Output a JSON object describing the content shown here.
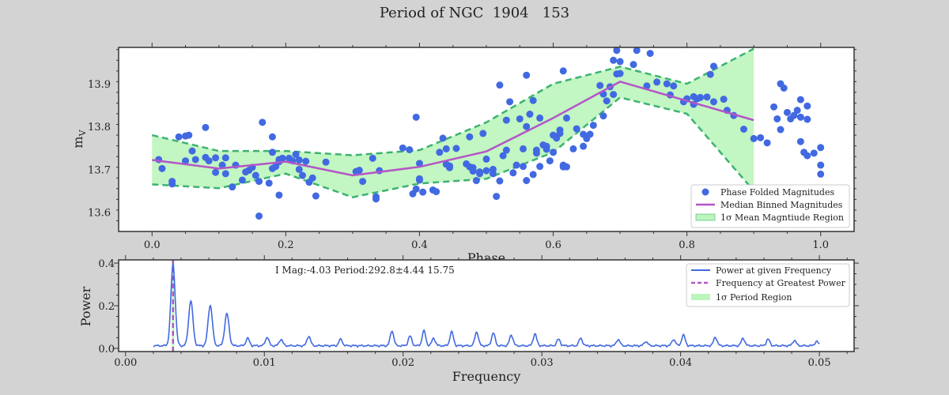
{
  "figure": {
    "title": "Period of NGC  1904   153"
  },
  "colors": {
    "points": "#4169e1",
    "median": "#b455c8",
    "band_fill": "#90ee90",
    "band_edge": "#3cb371",
    "power": "#4169e1",
    "peak": "#b455c8",
    "background": "#d3d3d3"
  },
  "chart_data": [
    {
      "type": "scatter",
      "xlabel": "Phase",
      "ylabel": "m_V",
      "xlim": [
        -0.05,
        1.05
      ],
      "ylim": [
        13.555,
        13.985
      ],
      "xticks": [
        "0.0",
        "0.2",
        "0.4",
        "0.6",
        "0.8",
        "1.0"
      ],
      "yticks": [
        "13.6",
        "13.7",
        "13.8",
        "13.9"
      ],
      "legend": {
        "position": "lower-right",
        "entries": [
          "Phase Folded Magnitudes",
          "Median Binned Magnitudes",
          "1σ Mean Magntiude Region"
        ]
      },
      "points": [
        [
          0.01,
          13.723
        ],
        [
          0.015,
          13.702
        ],
        [
          0.03,
          13.672
        ],
        [
          0.03,
          13.666
        ],
        [
          0.04,
          13.776
        ],
        [
          0.05,
          13.778
        ],
        [
          0.055,
          13.78
        ],
        [
          0.05,
          13.72
        ],
        [
          0.06,
          13.743
        ],
        [
          0.065,
          13.723
        ],
        [
          0.08,
          13.798
        ],
        [
          0.08,
          13.728
        ],
        [
          0.085,
          13.72
        ],
        [
          0.095,
          13.727
        ],
        [
          0.095,
          13.693
        ],
        [
          0.105,
          13.71
        ],
        [
          0.11,
          13.727
        ],
        [
          0.11,
          13.69
        ],
        [
          0.12,
          13.659
        ],
        [
          0.125,
          13.71
        ],
        [
          0.135,
          13.675
        ],
        [
          0.14,
          13.694
        ],
        [
          0.145,
          13.698
        ],
        [
          0.15,
          13.705
        ],
        [
          0.155,
          13.686
        ],
        [
          0.16,
          13.591
        ],
        [
          0.16,
          13.672
        ],
        [
          0.165,
          13.81
        ],
        [
          0.175,
          13.668
        ],
        [
          0.18,
          13.776
        ],
        [
          0.18,
          13.74
        ],
        [
          0.18,
          13.702
        ],
        [
          0.185,
          13.707
        ],
        [
          0.19,
          13.718
        ],
        [
          0.19,
          13.723
        ],
        [
          0.19,
          13.64
        ],
        [
          0.195,
          13.726
        ],
        [
          0.205,
          13.726
        ],
        [
          0.21,
          13.72
        ],
        [
          0.215,
          13.735
        ],
        [
          0.22,
          13.722
        ],
        [
          0.22,
          13.7
        ],
        [
          0.225,
          13.686
        ],
        [
          0.23,
          13.719
        ],
        [
          0.235,
          13.67
        ],
        [
          0.24,
          13.68
        ],
        [
          0.245,
          13.638
        ],
        [
          0.26,
          13.717
        ],
        [
          0.305,
          13.695
        ],
        [
          0.31,
          13.698
        ],
        [
          0.315,
          13.672
        ],
        [
          0.33,
          13.726
        ],
        [
          0.335,
          13.636
        ],
        [
          0.335,
          13.631
        ],
        [
          0.34,
          13.697
        ],
        [
          0.375,
          13.75
        ],
        [
          0.385,
          13.746
        ],
        [
          0.39,
          13.643
        ],
        [
          0.395,
          13.654
        ],
        [
          0.4,
          13.675
        ],
        [
          0.4,
          13.678
        ],
        [
          0.395,
          13.822
        ],
        [
          0.4,
          13.714
        ],
        [
          0.405,
          13.647
        ],
        [
          0.42,
          13.652
        ],
        [
          0.425,
          13.648
        ],
        [
          0.43,
          13.74
        ],
        [
          0.435,
          13.773
        ],
        [
          0.44,
          13.712
        ],
        [
          0.44,
          13.748
        ],
        [
          0.445,
          13.704
        ],
        [
          0.445,
          13.708
        ],
        [
          0.455,
          13.749
        ],
        [
          0.47,
          13.713
        ],
        [
          0.475,
          13.776
        ],
        [
          0.475,
          13.706
        ],
        [
          0.48,
          13.696
        ],
        [
          0.48,
          13.704
        ],
        [
          0.485,
          13.674
        ],
        [
          0.49,
          13.694
        ],
        [
          0.49,
          13.69
        ],
        [
          0.495,
          13.784
        ],
        [
          0.5,
          13.697
        ],
        [
          0.5,
          13.724
        ],
        [
          0.51,
          13.7
        ],
        [
          0.51,
          13.69
        ],
        [
          0.515,
          13.637
        ],
        [
          0.52,
          13.897
        ],
        [
          0.52,
          13.673
        ],
        [
          0.525,
          13.732
        ],
        [
          0.53,
          13.745
        ],
        [
          0.53,
          13.815
        ],
        [
          0.535,
          13.858
        ],
        [
          0.54,
          13.692
        ],
        [
          0.545,
          13.71
        ],
        [
          0.55,
          13.818
        ],
        [
          0.555,
          13.707
        ],
        [
          0.555,
          13.748
        ],
        [
          0.56,
          13.674
        ],
        [
          0.56,
          13.92
        ],
        [
          0.56,
          13.8
        ],
        [
          0.565,
          13.829
        ],
        [
          0.57,
          13.688
        ],
        [
          0.57,
          13.861
        ],
        [
          0.575,
          13.738
        ],
        [
          0.575,
          13.745
        ],
        [
          0.58,
          13.707
        ],
        [
          0.58,
          13.82
        ],
        [
          0.585,
          13.757
        ],
        [
          0.59,
          13.747
        ],
        [
          0.59,
          13.754
        ],
        [
          0.595,
          13.72
        ],
        [
          0.6,
          13.78
        ],
        [
          0.6,
          13.74
        ],
        [
          0.605,
          13.773
        ],
        [
          0.61,
          13.784
        ],
        [
          0.61,
          13.792
        ],
        [
          0.615,
          13.71
        ],
        [
          0.615,
          13.706
        ],
        [
          0.615,
          13.93
        ],
        [
          0.62,
          13.706
        ],
        [
          0.62,
          13.82
        ],
        [
          0.63,
          13.748
        ],
        [
          0.635,
          13.795
        ],
        [
          0.645,
          13.754
        ],
        [
          0.645,
          13.782
        ],
        [
          0.65,
          13.772
        ],
        [
          0.655,
          13.782
        ],
        [
          0.66,
          13.803
        ],
        [
          0.67,
          13.896
        ],
        [
          0.675,
          13.876
        ],
        [
          0.675,
          13.825
        ],
        [
          0.68,
          13.86
        ],
        [
          0.685,
          13.893
        ],
        [
          0.69,
          13.875
        ],
        [
          0.69,
          13.955
        ],
        [
          0.695,
          13.923
        ],
        [
          0.695,
          13.978
        ],
        [
          0.7,
          13.952
        ],
        [
          0.7,
          13.924
        ],
        [
          0.72,
          13.945
        ],
        [
          0.725,
          13.978
        ],
        [
          0.74,
          13.895
        ],
        [
          0.745,
          13.971
        ],
        [
          0.755,
          13.904
        ],
        [
          0.77,
          13.9
        ],
        [
          0.775,
          13.874
        ],
        [
          0.78,
          13.895
        ],
        [
          0.795,
          13.858
        ],
        [
          0.8,
          13.865
        ],
        [
          0.81,
          13.852
        ],
        [
          0.81,
          13.87
        ],
        [
          0.815,
          13.865
        ],
        [
          0.82,
          13.868
        ],
        [
          0.83,
          13.869
        ],
        [
          0.835,
          13.922
        ],
        [
          0.84,
          13.941
        ],
        [
          0.84,
          13.858
        ],
        [
          0.855,
          13.864
        ],
        [
          0.86,
          13.838
        ],
        [
          0.87,
          13.826
        ],
        [
          0.885,
          13.794
        ],
        [
          0.9,
          13.772
        ],
        [
          0.91,
          13.774
        ],
        [
          0.92,
          13.762
        ],
        [
          0.93,
          13.846
        ],
        [
          0.935,
          13.818
        ],
        [
          0.94,
          13.793
        ],
        [
          0.94,
          13.9
        ],
        [
          0.945,
          13.89
        ],
        [
          0.95,
          13.833
        ],
        [
          0.955,
          13.818
        ],
        [
          0.96,
          13.826
        ],
        [
          0.965,
          13.838
        ],
        [
          0.97,
          13.863
        ],
        [
          0.97,
          13.822
        ],
        [
          0.97,
          13.765
        ],
        [
          0.975,
          13.74
        ],
        [
          0.98,
          13.848
        ],
        [
          0.98,
          13.732
        ],
        [
          0.98,
          13.817
        ],
        [
          0.99,
          13.738
        ],
        [
          1.0,
          13.689
        ],
        [
          1.0,
          13.71
        ],
        [
          1.0,
          13.751
        ]
      ],
      "median": {
        "x": [
          0.0,
          0.1,
          0.2,
          0.3,
          0.4,
          0.5,
          0.6,
          0.7,
          0.8,
          0.9
        ],
        "y": [
          13.722,
          13.702,
          13.718,
          13.686,
          13.706,
          13.742,
          13.82,
          13.905,
          13.86,
          13.815
        ]
      },
      "band": {
        "x": [
          0.0,
          0.1,
          0.2,
          0.3,
          0.4,
          0.5,
          0.6,
          0.7,
          0.8,
          0.9
        ],
        "upper": [
          13.78,
          13.743,
          13.743,
          13.733,
          13.745,
          13.81,
          13.9,
          13.94,
          13.9,
          13.982
        ],
        "lower": [
          13.665,
          13.656,
          13.69,
          13.635,
          13.667,
          13.678,
          13.74,
          13.868,
          13.83,
          13.65
        ]
      }
    },
    {
      "type": "line",
      "xlabel": "Frequency",
      "ylabel": "Power",
      "xlim": [
        -0.0005,
        0.0525
      ],
      "ylim": [
        -0.015,
        0.415
      ],
      "xticks": [
        "0.00",
        "0.01",
        "0.02",
        "0.03",
        "0.04",
        "0.05"
      ],
      "yticks": [
        "0.0",
        "0.2",
        "0.4"
      ],
      "annotation": "I Mag:-4.03 Period:292.8±4.44 15.75",
      "legend": {
        "position": "top-right",
        "entries": [
          "Power at given Frequency",
          "Frequency at Greatest Power",
          "1σ Period Region"
        ]
      },
      "frequency_range": [
        0.002,
        0.05
      ],
      "peak_frequency": 0.00342,
      "peaks": [
        [
          0.00342,
          0.38
        ],
        [
          0.0047,
          0.21
        ],
        [
          0.0061,
          0.19
        ],
        [
          0.0073,
          0.15
        ],
        [
          0.0088,
          0.035
        ],
        [
          0.0102,
          0.04
        ],
        [
          0.0112,
          0.03
        ],
        [
          0.0132,
          0.045
        ],
        [
          0.0155,
          0.03
        ],
        [
          0.0192,
          0.07
        ],
        [
          0.0205,
          0.045
        ],
        [
          0.0215,
          0.07
        ],
        [
          0.0222,
          0.035
        ],
        [
          0.0235,
          0.065
        ],
        [
          0.0253,
          0.065
        ],
        [
          0.0265,
          0.06
        ],
        [
          0.0278,
          0.05
        ],
        [
          0.0295,
          0.055
        ],
        [
          0.0312,
          0.03
        ],
        [
          0.0328,
          0.035
        ],
        [
          0.0355,
          0.03
        ],
        [
          0.0375,
          0.02
        ],
        [
          0.0395,
          0.03
        ],
        [
          0.0402,
          0.05
        ],
        [
          0.0425,
          0.04
        ],
        [
          0.0445,
          0.035
        ],
        [
          0.0463,
          0.03
        ],
        [
          0.0482,
          0.025
        ],
        [
          0.0498,
          0.02
        ]
      ]
    }
  ]
}
